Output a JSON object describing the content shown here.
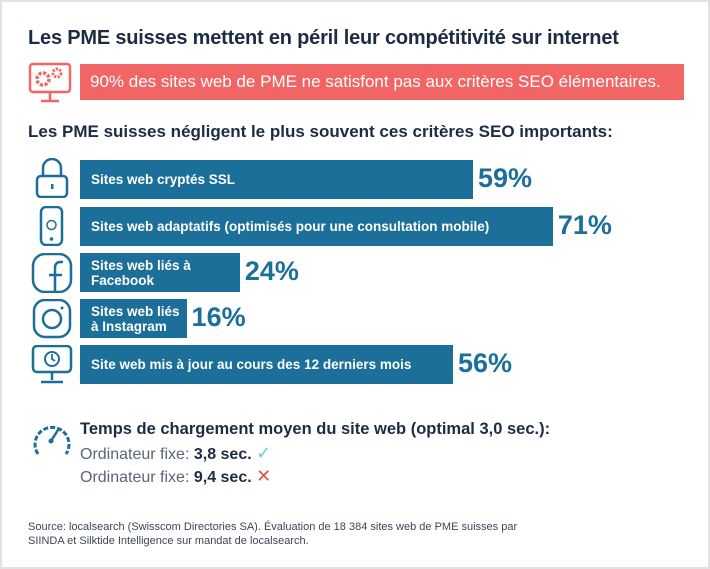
{
  "title": "Les PME suisses mettent en péril leur compétitivité sur internet",
  "banner": {
    "text": "90% des sites web de PME ne satisfont pas aux critères SEO élémentaires.",
    "icon": "monitor-gears-icon",
    "color": "#f26565"
  },
  "subtitle": "Les PME suisses négligent le plus souvent ces critères SEO importants:",
  "chart_data": {
    "type": "bar",
    "orientation": "horizontal",
    "bar_color": "#1b6f99",
    "categories": [
      "Sites web cryptés SSL",
      "Sites web adaptatifs (optimisés pour une consultation mobile)",
      "Sites web liés à Facebook",
      "Sites web liés à Instagram",
      "Site web mis à jour au cours des 12 derniers mois"
    ],
    "values": [
      59,
      71,
      24,
      16,
      56
    ],
    "labels": [
      "59%",
      "71%",
      "24%",
      "16%",
      "56%"
    ],
    "icons": [
      "lock-icon",
      "smartphone-globe-icon",
      "facebook-icon",
      "instagram-icon",
      "monitor-clock-icon"
    ]
  },
  "loading": {
    "title": "Temps de chargement moyen du site web (optimal 3,0 sec.):",
    "icon": "speedometer-icon",
    "rows": [
      {
        "label": "Ordinateur fixe:",
        "value": "3,8 sec.",
        "status": "check-icon",
        "color": "#7cc6de"
      },
      {
        "label": "Ordinateur fixe:",
        "value": "9,4 sec.",
        "status": "cross-icon",
        "color": "#e84e4e"
      }
    ]
  },
  "source": [
    "Source: localsearch (Swisscom Directories SA). Évaluation de 18 384 sites web de PME suisses par",
    "SIINDA et Silktide Intelligence sur mandat de localsearch."
  ]
}
